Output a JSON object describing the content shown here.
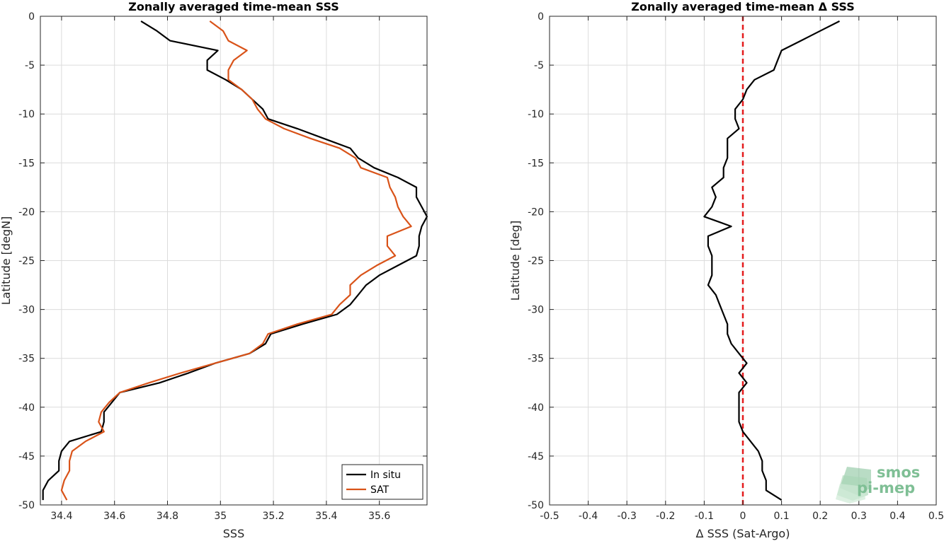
{
  "chart_data": [
    {
      "type": "line",
      "title": "Zonally averaged time-mean SSS",
      "xlabel": "SSS",
      "ylabel": "Latitude [degN]",
      "xlim": [
        34.32,
        35.78
      ],
      "ylim": [
        -50,
        0
      ],
      "xticks": [
        34.4,
        34.6,
        34.8,
        35,
        35.2,
        35.4,
        35.6
      ],
      "xtick_labels": [
        "34.4",
        "34.6",
        "34.8",
        "35",
        "35.2",
        "35.4",
        "35.6"
      ],
      "yticks": [
        0,
        -5,
        -10,
        -15,
        -20,
        -25,
        -30,
        -35,
        -40,
        -45,
        -50
      ],
      "ytick_labels": [
        "0",
        "-5",
        "-10",
        "-15",
        "-20",
        "-25",
        "-30",
        "-35",
        "-40",
        "-45",
        "-50"
      ],
      "grid": true,
      "legend_position": "bottom-right",
      "series": [
        {
          "name": "In situ",
          "color": "#000000",
          "y": [
            -0.5,
            -1.5,
            -2.5,
            -3.5,
            -4.5,
            -5.5,
            -6.5,
            -7.5,
            -8.5,
            -9.5,
            -10.5,
            -11.5,
            -12.5,
            -13.5,
            -14.5,
            -15.5,
            -16.5,
            -17.5,
            -18.5,
            -19.5,
            -20.5,
            -21.5,
            -22.5,
            -23.5,
            -24.5,
            -25.5,
            -26.5,
            -27.5,
            -28.5,
            -29.5,
            -30.5,
            -31.5,
            -32.5,
            -33.5,
            -34.5,
            -35.5,
            -36.5,
            -37.5,
            -38.5,
            -39.5,
            -40.5,
            -41.5,
            -42.5,
            -43.5,
            -44.5,
            -45.5,
            -46.5,
            -47.5,
            -48.5,
            -49.5
          ],
          "x": [
            34.7,
            34.76,
            34.81,
            34.99,
            34.95,
            34.95,
            35.02,
            35.08,
            35.12,
            35.16,
            35.18,
            35.29,
            35.39,
            35.49,
            35.52,
            35.58,
            35.67,
            35.74,
            35.74,
            35.76,
            35.78,
            35.76,
            35.75,
            35.75,
            35.74,
            35.67,
            35.6,
            35.55,
            35.52,
            35.49,
            35.44,
            35.31,
            35.19,
            35.17,
            35.11,
            34.98,
            34.88,
            34.77,
            34.62,
            34.59,
            34.56,
            34.56,
            34.55,
            34.43,
            34.4,
            34.39,
            34.39,
            34.35,
            34.33,
            34.33
          ]
        },
        {
          "name": "SAT",
          "color": "#d95319",
          "y": [
            -0.5,
            -1.5,
            -2.5,
            -3.5,
            -4.5,
            -5.5,
            -6.5,
            -7.5,
            -8.5,
            -9.5,
            -10.5,
            -11.5,
            -12.5,
            -13.5,
            -14.5,
            -15.5,
            -16.5,
            -17.5,
            -18.5,
            -19.5,
            -20.5,
            -21.5,
            -22.5,
            -23.5,
            -24.5,
            -25.5,
            -26.5,
            -27.5,
            -28.5,
            -29.5,
            -30.5,
            -31.5,
            -32.5,
            -33.5,
            -34.5,
            -35.5,
            -36.5,
            -37.5,
            -38.5,
            -39.5,
            -40.5,
            -41.5,
            -42.5,
            -43.5,
            -44.5,
            -45.5,
            -46.5,
            -47.5,
            -48.5,
            -49.5
          ],
          "x": [
            34.96,
            35.01,
            35.03,
            35.1,
            35.05,
            35.03,
            35.03,
            35.08,
            35.12,
            35.14,
            35.17,
            35.24,
            35.34,
            35.45,
            35.51,
            35.53,
            35.63,
            35.64,
            35.66,
            35.67,
            35.69,
            35.72,
            35.63,
            35.63,
            35.66,
            35.59,
            35.53,
            35.49,
            35.49,
            35.45,
            35.42,
            35.29,
            35.18,
            35.16,
            35.11,
            34.98,
            34.85,
            34.73,
            34.62,
            34.58,
            34.55,
            34.54,
            34.56,
            34.49,
            34.44,
            34.43,
            34.43,
            34.41,
            34.4,
            34.42
          ]
        }
      ]
    },
    {
      "type": "line",
      "title": "Zonally averaged time-mean Δ SSS",
      "xlabel": "Δ SSS (Sat-Argo)",
      "ylabel": "Latitude [deg]",
      "xlim": [
        -0.5,
        0.5
      ],
      "ylim": [
        -50,
        0
      ],
      "xticks": [
        -0.5,
        -0.4,
        -0.3,
        -0.2,
        -0.1,
        0,
        0.1,
        0.2,
        0.3,
        0.4,
        0.5
      ],
      "xtick_labels": [
        "-0.5",
        "-0.4",
        "-0.3",
        "-0.2",
        "-0.1",
        "0",
        "0.1",
        "0.2",
        "0.3",
        "0.4",
        "0.5"
      ],
      "yticks": [
        0,
        -5,
        -10,
        -15,
        -20,
        -25,
        -30,
        -35,
        -40,
        -45,
        -50
      ],
      "ytick_labels": [
        "0",
        "-5",
        "-10",
        "-15",
        "-20",
        "-25",
        "-30",
        "-35",
        "-40",
        "-45",
        "-50"
      ],
      "grid": true,
      "reference_line": {
        "x": 0,
        "style": "dashed",
        "color": "#e41a1c"
      },
      "series": [
        {
          "color": "#000000",
          "y": [
            -0.5,
            -1.5,
            -2.5,
            -3.5,
            -4.5,
            -5.5,
            -6.5,
            -7.5,
            -8.5,
            -9.5,
            -10.5,
            -11.5,
            -12.5,
            -13.5,
            -14.5,
            -15.5,
            -16.5,
            -17.5,
            -18.5,
            -19.5,
            -20.5,
            -21.5,
            -22.5,
            -23.5,
            -24.5,
            -25.5,
            -26.5,
            -27.5,
            -28.5,
            -29.5,
            -30.5,
            -31.5,
            -32.5,
            -33.5,
            -34.5,
            -35.5,
            -36.5,
            -37.5,
            -38.5,
            -39.5,
            -40.5,
            -41.5,
            -42.5,
            -43.5,
            -44.5,
            -45.5,
            -46.5,
            -47.5,
            -48.5,
            -49.5
          ],
          "x": [
            0.25,
            0.2,
            0.15,
            0.1,
            0.09,
            0.08,
            0.03,
            0.01,
            0.0,
            -0.02,
            -0.02,
            -0.01,
            -0.04,
            -0.04,
            -0.04,
            -0.05,
            -0.05,
            -0.08,
            -0.07,
            -0.08,
            -0.1,
            -0.03,
            -0.09,
            -0.09,
            -0.08,
            -0.08,
            -0.08,
            -0.09,
            -0.07,
            -0.06,
            -0.05,
            -0.04,
            -0.04,
            -0.03,
            -0.01,
            0.01,
            -0.01,
            0.01,
            -0.01,
            -0.01,
            -0.01,
            -0.01,
            0.0,
            0.02,
            0.04,
            0.05,
            0.05,
            0.06,
            0.06,
            0.1
          ]
        }
      ]
    }
  ],
  "logo": {
    "line1": "smos",
    "line2": "pi-mep",
    "color": "#7fbf95"
  }
}
